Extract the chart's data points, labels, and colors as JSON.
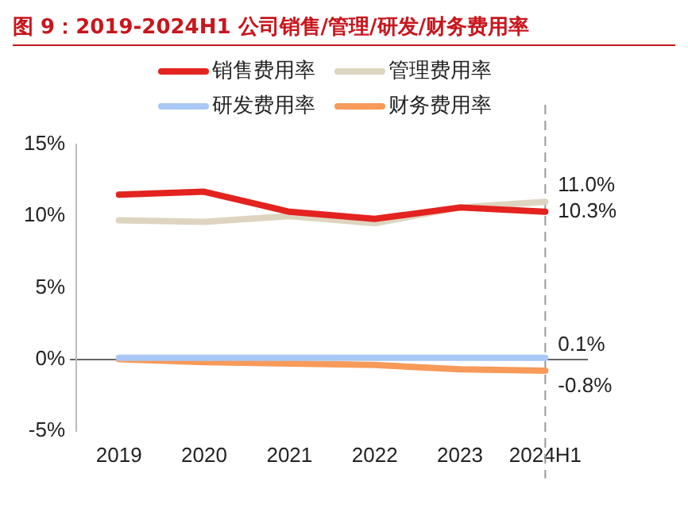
{
  "chart_data": {
    "type": "line",
    "title": "图 9：2019-2024H1 公司销售/管理/研发/财务费用率",
    "categories": [
      "2019",
      "2020",
      "2021",
      "2022",
      "2023",
      "2024H1"
    ],
    "series": [
      {
        "name": "销售费用率",
        "color": "#e3231f",
        "values": [
          11.5,
          11.7,
          10.3,
          9.8,
          10.6,
          10.3
        ],
        "value_labels": [
          null,
          null,
          null,
          null,
          null,
          "10.3%"
        ]
      },
      {
        "name": "管理费用率",
        "color": "#ddd5c0",
        "values": [
          9.7,
          9.6,
          10.0,
          9.5,
          10.6,
          11.0
        ],
        "value_labels": [
          null,
          null,
          null,
          null,
          null,
          "11.0%"
        ]
      },
      {
        "name": "研发费用率",
        "color": "#a9c8f5",
        "values": [
          0.1,
          0.1,
          0.1,
          0.1,
          0.1,
          0.1
        ],
        "value_labels": [
          null,
          null,
          null,
          null,
          null,
          "0.1%"
        ]
      },
      {
        "name": "财务费用率",
        "color": "#f79a5a",
        "values": [
          0.0,
          -0.2,
          -0.3,
          -0.4,
          -0.7,
          -0.8
        ],
        "value_labels": [
          null,
          null,
          null,
          null,
          null,
          "-0.8%"
        ]
      }
    ],
    "ylim": [
      -5,
      15
    ],
    "yticks": [
      {
        "value": -5,
        "label": "-5%"
      },
      {
        "value": 0,
        "label": "0%"
      },
      {
        "value": 5,
        "label": "5%"
      },
      {
        "value": 10,
        "label": "10%"
      },
      {
        "value": 15,
        "label": "15%"
      }
    ],
    "ref_lines": [
      {
        "axis": "x",
        "value": "2024H1",
        "color": "#999999",
        "line_style": "dashed"
      }
    ],
    "legend": "top",
    "grid": false,
    "marker": "none",
    "line_style": "solid"
  }
}
